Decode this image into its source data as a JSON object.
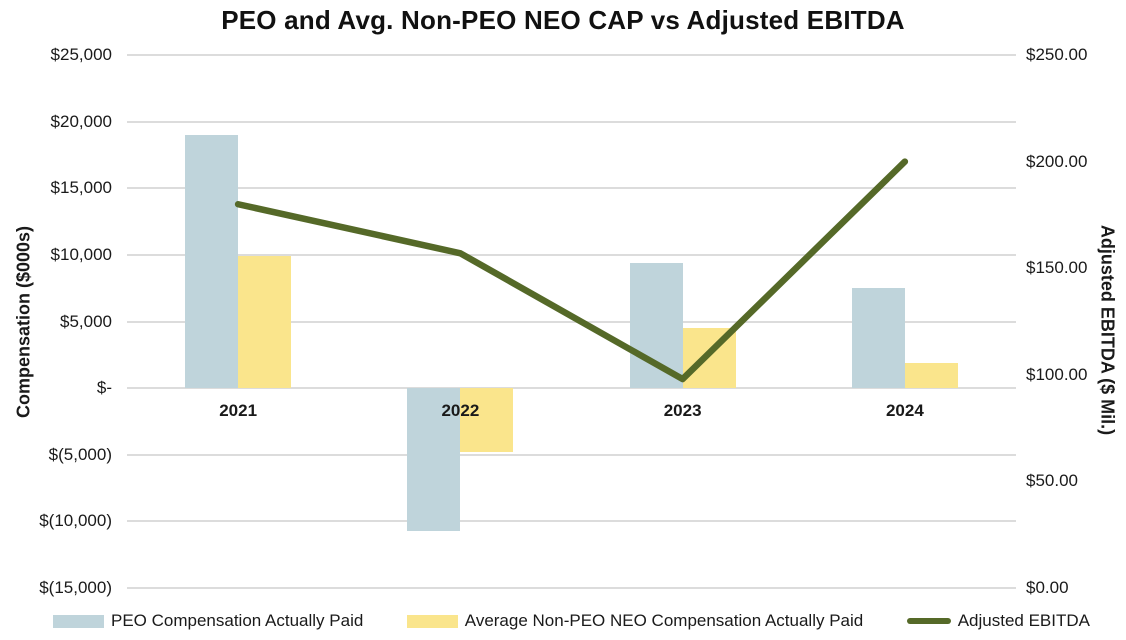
{
  "title": "PEO and Avg. Non-PEO NEO CAP vs Adjusted EBITDA",
  "chart_data": {
    "type": "combo-bar-line",
    "categories": [
      "2021",
      "2022",
      "2023",
      "2024"
    ],
    "series": [
      {
        "name": "PEO Compensation Actually Paid",
        "type": "bar",
        "axis": "left",
        "color": "#BFD4DB",
        "values": [
          19000,
          -10700,
          9400,
          7500
        ]
      },
      {
        "name": "Average Non-PEO NEO Compensation Actually Paid",
        "type": "bar",
        "axis": "left",
        "color": "#FAE58C",
        "values": [
          9900,
          -4800,
          4500,
          1900
        ]
      },
      {
        "name": "Adjusted EBITDA",
        "type": "line",
        "axis": "right",
        "color": "#556928",
        "values": [
          180,
          157,
          98,
          200
        ]
      }
    ],
    "left_axis": {
      "title": "Compensation ($000s)",
      "min": -15000,
      "max": 25000,
      "tick_step": 5000,
      "ticks": [
        {
          "label": "$25,000",
          "value": 25000
        },
        {
          "label": "$20,000",
          "value": 20000
        },
        {
          "label": "$15,000",
          "value": 15000
        },
        {
          "label": "$10,000",
          "value": 10000
        },
        {
          "label": "$5,000",
          "value": 5000
        },
        {
          "label": "$-",
          "value": 0
        },
        {
          "label": "$(5,000)",
          "value": -5000
        },
        {
          "label": "$(10,000)",
          "value": -10000
        },
        {
          "label": "$(15,000)",
          "value": -15000
        }
      ]
    },
    "right_axis": {
      "title": "Adjusted EBITDA ($ Mil.)",
      "min": 0,
      "max": 250,
      "tick_step": 50,
      "ticks": [
        {
          "label": "$250.00",
          "value": 250
        },
        {
          "label": "$200.00",
          "value": 200
        },
        {
          "label": "$150.00",
          "value": 150
        },
        {
          "label": "$100.00",
          "value": 100
        },
        {
          "label": "$50.00",
          "value": 50
        },
        {
          "label": "$0.00",
          "value": 0
        }
      ]
    },
    "grid": true,
    "legend_position": "bottom"
  }
}
